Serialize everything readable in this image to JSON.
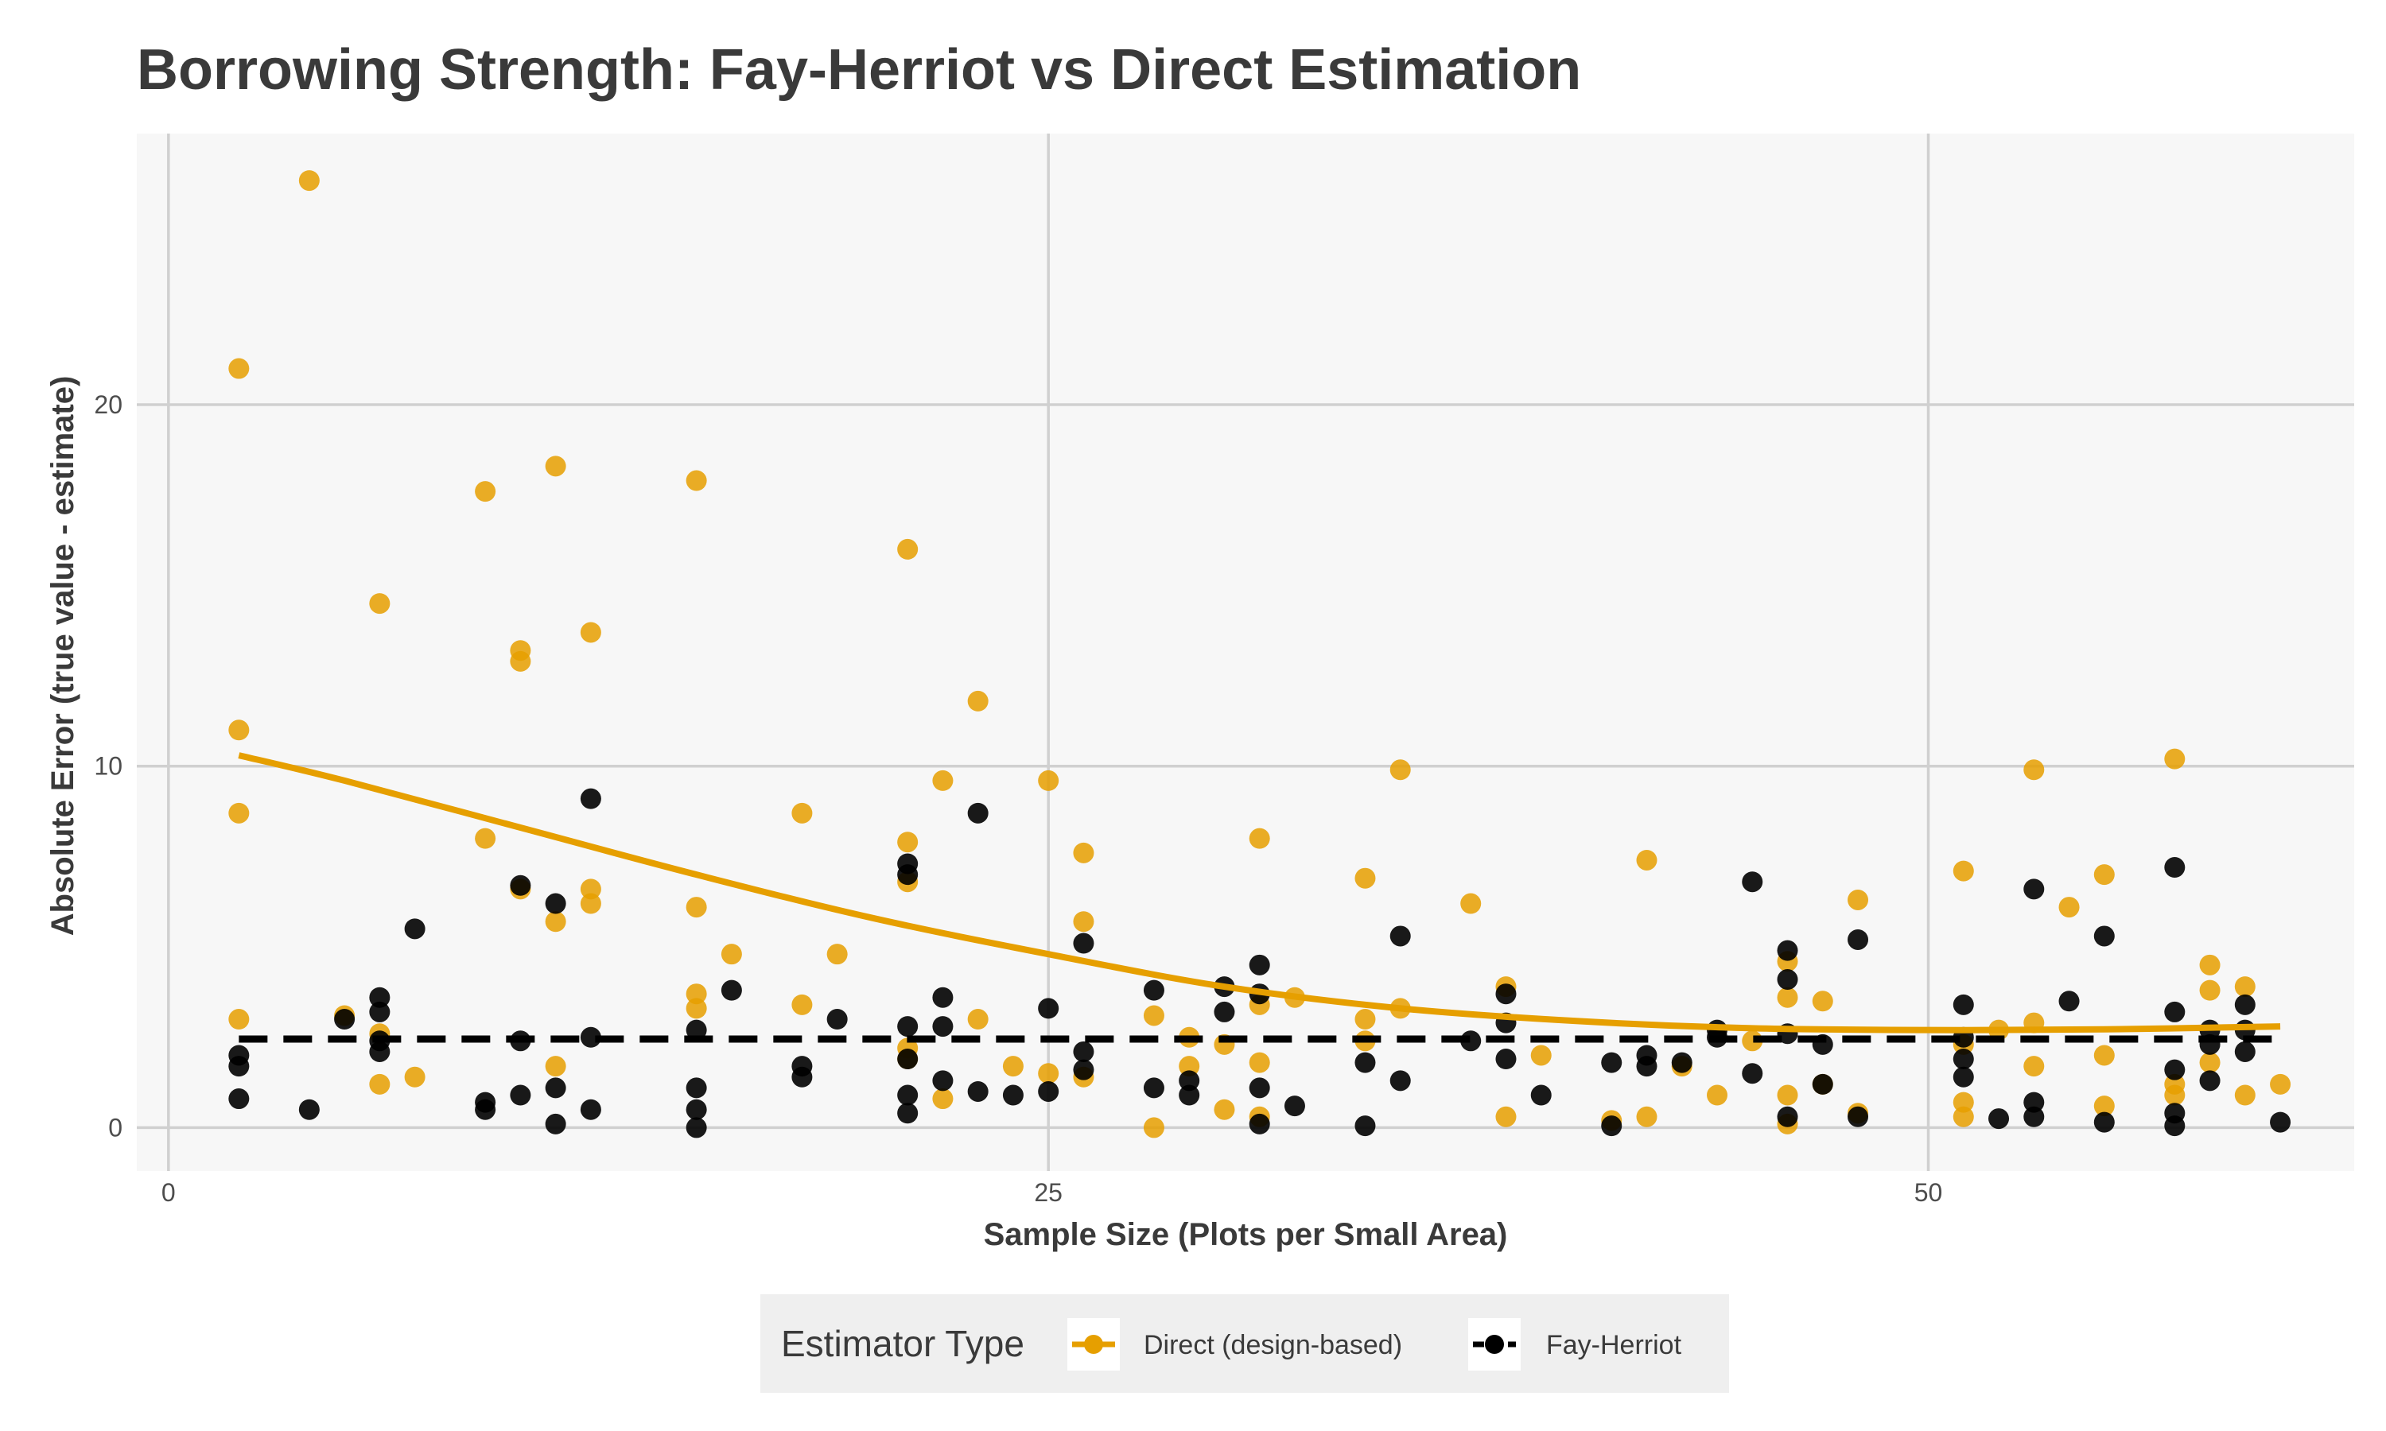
{
  "chart_data": {
    "type": "scatter",
    "title": "Borrowing Strength: Fay-Herriot vs Direct Estimation",
    "xlabel": "Sample Size (Plots per Small Area)",
    "ylabel": "Absolute Error (true value - estimate)",
    "xlim": [
      -0.9,
      62.1
    ],
    "ylim": [
      -1.2,
      27.5
    ],
    "x_ticks": [
      0,
      25,
      50
    ],
    "y_ticks": [
      0,
      10,
      20
    ],
    "grid": true,
    "legend": {
      "title": "Estimator Type",
      "placement": "bottom",
      "entries": [
        "Direct (design-based)",
        "Fay-Herriot"
      ]
    },
    "series": [
      {
        "name": "Direct (design-based)",
        "color": "#E69F00",
        "trend": "smooth",
        "trend_values": [
          {
            "x": 2,
            "y": 10.3
          },
          {
            "x": 5,
            "y": 9.6
          },
          {
            "x": 10,
            "y": 8.3
          },
          {
            "x": 15,
            "y": 7.0
          },
          {
            "x": 20,
            "y": 5.8
          },
          {
            "x": 25,
            "y": 4.8
          },
          {
            "x": 30,
            "y": 3.9
          },
          {
            "x": 35,
            "y": 3.3
          },
          {
            "x": 40,
            "y": 2.95
          },
          {
            "x": 45,
            "y": 2.75
          },
          {
            "x": 50,
            "y": 2.7
          },
          {
            "x": 55,
            "y": 2.72
          },
          {
            "x": 60,
            "y": 2.8
          }
        ],
        "points": [
          {
            "x": 2,
            "y": 21.0
          },
          {
            "x": 2,
            "y": 11.0
          },
          {
            "x": 2,
            "y": 8.7
          },
          {
            "x": 2,
            "y": 3.0
          },
          {
            "x": 4,
            "y": 26.2
          },
          {
            "x": 5,
            "y": 3.1
          },
          {
            "x": 6,
            "y": 14.5
          },
          {
            "x": 6,
            "y": 2.6
          },
          {
            "x": 6,
            "y": 1.2
          },
          {
            "x": 7,
            "y": 1.4
          },
          {
            "x": 9,
            "y": 17.6
          },
          {
            "x": 9,
            "y": 8.0
          },
          {
            "x": 10,
            "y": 13.2
          },
          {
            "x": 10,
            "y": 12.9
          },
          {
            "x": 10,
            "y": 6.6
          },
          {
            "x": 11,
            "y": 18.3
          },
          {
            "x": 11,
            "y": 5.7
          },
          {
            "x": 11,
            "y": 1.7
          },
          {
            "x": 12,
            "y": 13.7
          },
          {
            "x": 12,
            "y": 6.6
          },
          {
            "x": 12,
            "y": 6.2
          },
          {
            "x": 15,
            "y": 17.9
          },
          {
            "x": 15,
            "y": 6.1
          },
          {
            "x": 15,
            "y": 3.7
          },
          {
            "x": 15,
            "y": 3.3
          },
          {
            "x": 16,
            "y": 4.8
          },
          {
            "x": 18,
            "y": 8.7
          },
          {
            "x": 18,
            "y": 3.4
          },
          {
            "x": 19,
            "y": 4.8
          },
          {
            "x": 21,
            "y": 16.0
          },
          {
            "x": 21,
            "y": 7.9
          },
          {
            "x": 21,
            "y": 6.8
          },
          {
            "x": 21,
            "y": 2.2
          },
          {
            "x": 21,
            "y": 1.9
          },
          {
            "x": 22,
            "y": 9.6
          },
          {
            "x": 22,
            "y": 0.8
          },
          {
            "x": 23,
            "y": 11.8
          },
          {
            "x": 23,
            "y": 3.0
          },
          {
            "x": 24,
            "y": 1.7
          },
          {
            "x": 25,
            "y": 9.6
          },
          {
            "x": 25,
            "y": 1.5
          },
          {
            "x": 26,
            "y": 7.6
          },
          {
            "x": 26,
            "y": 5.7
          },
          {
            "x": 26,
            "y": 1.4
          },
          {
            "x": 28,
            "y": 3.1
          },
          {
            "x": 28,
            "y": 0.0
          },
          {
            "x": 29,
            "y": 2.5
          },
          {
            "x": 29,
            "y": 1.7
          },
          {
            "x": 30,
            "y": 2.3
          },
          {
            "x": 30,
            "y": 0.5
          },
          {
            "x": 31,
            "y": 8.0
          },
          {
            "x": 31,
            "y": 3.4
          },
          {
            "x": 31,
            "y": 1.8
          },
          {
            "x": 31,
            "y": 0.3
          },
          {
            "x": 32,
            "y": 3.6
          },
          {
            "x": 34,
            "y": 6.9
          },
          {
            "x": 34,
            "y": 3.0
          },
          {
            "x": 34,
            "y": 2.4
          },
          {
            "x": 35,
            "y": 9.9
          },
          {
            "x": 35,
            "y": 3.3
          },
          {
            "x": 37,
            "y": 6.2
          },
          {
            "x": 38,
            "y": 3.9
          },
          {
            "x": 38,
            "y": 0.3
          },
          {
            "x": 39,
            "y": 2.0
          },
          {
            "x": 41,
            "y": 0.2
          },
          {
            "x": 42,
            "y": 7.4
          },
          {
            "x": 42,
            "y": 0.3
          },
          {
            "x": 43,
            "y": 1.7
          },
          {
            "x": 44,
            "y": 0.9
          },
          {
            "x": 45,
            "y": 2.4
          },
          {
            "x": 46,
            "y": 4.6
          },
          {
            "x": 46,
            "y": 3.6
          },
          {
            "x": 46,
            "y": 0.9
          },
          {
            "x": 46,
            "y": 0.1
          },
          {
            "x": 47,
            "y": 3.5
          },
          {
            "x": 47,
            "y": 1.2
          },
          {
            "x": 48,
            "y": 6.3
          },
          {
            "x": 48,
            "y": 0.4
          },
          {
            "x": 51,
            "y": 7.1
          },
          {
            "x": 51,
            "y": 2.3
          },
          {
            "x": 51,
            "y": 0.7
          },
          {
            "x": 51,
            "y": 0.3
          },
          {
            "x": 52,
            "y": 2.7
          },
          {
            "x": 53,
            "y": 9.9
          },
          {
            "x": 53,
            "y": 2.9
          },
          {
            "x": 53,
            "y": 1.7
          },
          {
            "x": 54,
            "y": 6.1
          },
          {
            "x": 55,
            "y": 7.0
          },
          {
            "x": 55,
            "y": 2.0
          },
          {
            "x": 55,
            "y": 0.6
          },
          {
            "x": 57,
            "y": 10.2
          },
          {
            "x": 57,
            "y": 1.2
          },
          {
            "x": 57,
            "y": 0.9
          },
          {
            "x": 58,
            "y": 4.5
          },
          {
            "x": 58,
            "y": 3.8
          },
          {
            "x": 58,
            "y": 1.8
          },
          {
            "x": 59,
            "y": 3.9
          },
          {
            "x": 59,
            "y": 0.9
          },
          {
            "x": 60,
            "y": 1.2
          }
        ]
      },
      {
        "name": "Fay-Herriot",
        "color": "#000000",
        "trend": "dashed",
        "trend_values": [
          {
            "x": 2,
            "y": 2.45
          },
          {
            "x": 60,
            "y": 2.45
          }
        ],
        "points": [
          {
            "x": 2,
            "y": 2.0
          },
          {
            "x": 2,
            "y": 1.7
          },
          {
            "x": 2,
            "y": 0.8
          },
          {
            "x": 4,
            "y": 0.5
          },
          {
            "x": 5,
            "y": 3.0
          },
          {
            "x": 6,
            "y": 3.6
          },
          {
            "x": 6,
            "y": 3.2
          },
          {
            "x": 6,
            "y": 2.4
          },
          {
            "x": 6,
            "y": 2.1
          },
          {
            "x": 7,
            "y": 5.5
          },
          {
            "x": 9,
            "y": 0.7
          },
          {
            "x": 9,
            "y": 0.5
          },
          {
            "x": 10,
            "y": 6.7
          },
          {
            "x": 10,
            "y": 2.4
          },
          {
            "x": 10,
            "y": 0.9
          },
          {
            "x": 11,
            "y": 6.2
          },
          {
            "x": 11,
            "y": 1.1
          },
          {
            "x": 11,
            "y": 0.1
          },
          {
            "x": 12,
            "y": 9.1
          },
          {
            "x": 12,
            "y": 2.5
          },
          {
            "x": 12,
            "y": 0.5
          },
          {
            "x": 15,
            "y": 2.7
          },
          {
            "x": 15,
            "y": 1.1
          },
          {
            "x": 15,
            "y": 0.5
          },
          {
            "x": 15,
            "y": 0.0
          },
          {
            "x": 16,
            "y": 3.8
          },
          {
            "x": 18,
            "y": 1.7
          },
          {
            "x": 18,
            "y": 1.4
          },
          {
            "x": 19,
            "y": 3.0
          },
          {
            "x": 21,
            "y": 7.3
          },
          {
            "x": 21,
            "y": 7.0
          },
          {
            "x": 21,
            "y": 2.8
          },
          {
            "x": 21,
            "y": 1.9
          },
          {
            "x": 21,
            "y": 0.9
          },
          {
            "x": 21,
            "y": 0.4
          },
          {
            "x": 22,
            "y": 3.6
          },
          {
            "x": 22,
            "y": 2.8
          },
          {
            "x": 22,
            "y": 1.3
          },
          {
            "x": 23,
            "y": 8.7
          },
          {
            "x": 23,
            "y": 1.0
          },
          {
            "x": 24,
            "y": 0.9
          },
          {
            "x": 25,
            "y": 3.3
          },
          {
            "x": 25,
            "y": 1.0
          },
          {
            "x": 26,
            "y": 5.1
          },
          {
            "x": 26,
            "y": 2.1
          },
          {
            "x": 26,
            "y": 1.6
          },
          {
            "x": 28,
            "y": 3.8
          },
          {
            "x": 28,
            "y": 1.1
          },
          {
            "x": 29,
            "y": 1.3
          },
          {
            "x": 29,
            "y": 0.9
          },
          {
            "x": 30,
            "y": 3.9
          },
          {
            "x": 30,
            "y": 3.2
          },
          {
            "x": 31,
            "y": 4.5
          },
          {
            "x": 31,
            "y": 3.7
          },
          {
            "x": 31,
            "y": 1.1
          },
          {
            "x": 31,
            "y": 0.1
          },
          {
            "x": 32,
            "y": 0.6
          },
          {
            "x": 34,
            "y": 1.8
          },
          {
            "x": 34,
            "y": 0.05
          },
          {
            "x": 35,
            "y": 5.3
          },
          {
            "x": 35,
            "y": 1.3
          },
          {
            "x": 37,
            "y": 2.4
          },
          {
            "x": 38,
            "y": 3.7
          },
          {
            "x": 38,
            "y": 2.9
          },
          {
            "x": 38,
            "y": 1.9
          },
          {
            "x": 39,
            "y": 0.9
          },
          {
            "x": 41,
            "y": 1.8
          },
          {
            "x": 41,
            "y": 0.05
          },
          {
            "x": 42,
            "y": 2.0
          },
          {
            "x": 42,
            "y": 1.7
          },
          {
            "x": 43,
            "y": 1.8
          },
          {
            "x": 44,
            "y": 2.7
          },
          {
            "x": 44,
            "y": 2.5
          },
          {
            "x": 45,
            "y": 6.8
          },
          {
            "x": 45,
            "y": 1.5
          },
          {
            "x": 46,
            "y": 4.9
          },
          {
            "x": 46,
            "y": 4.1
          },
          {
            "x": 46,
            "y": 2.6
          },
          {
            "x": 46,
            "y": 0.3
          },
          {
            "x": 47,
            "y": 2.3
          },
          {
            "x": 47,
            "y": 1.2
          },
          {
            "x": 48,
            "y": 5.2
          },
          {
            "x": 48,
            "y": 0.3
          },
          {
            "x": 51,
            "y": 3.4
          },
          {
            "x": 51,
            "y": 2.5
          },
          {
            "x": 51,
            "y": 1.9
          },
          {
            "x": 51,
            "y": 1.4
          },
          {
            "x": 52,
            "y": 0.25
          },
          {
            "x": 53,
            "y": 6.6
          },
          {
            "x": 53,
            "y": 0.7
          },
          {
            "x": 53,
            "y": 0.3
          },
          {
            "x": 54,
            "y": 3.5
          },
          {
            "x": 55,
            "y": 5.3
          },
          {
            "x": 55,
            "y": 0.15
          },
          {
            "x": 57,
            "y": 7.2
          },
          {
            "x": 57,
            "y": 3.2
          },
          {
            "x": 57,
            "y": 1.6
          },
          {
            "x": 57,
            "y": 0.4
          },
          {
            "x": 57,
            "y": 0.05
          },
          {
            "x": 58,
            "y": 2.7
          },
          {
            "x": 58,
            "y": 2.3
          },
          {
            "x": 58,
            "y": 1.3
          },
          {
            "x": 59,
            "y": 3.4
          },
          {
            "x": 59,
            "y": 2.7
          },
          {
            "x": 59,
            "y": 2.1
          },
          {
            "x": 60,
            "y": 0.15
          }
        ]
      }
    ]
  }
}
